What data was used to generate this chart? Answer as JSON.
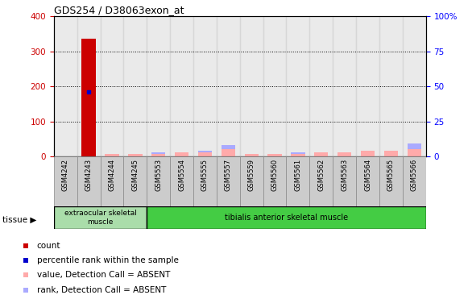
{
  "title": "GDS254 / D38063exon_at",
  "samples": [
    "GSM4242",
    "GSM4243",
    "GSM4244",
    "GSM4245",
    "GSM5553",
    "GSM5554",
    "GSM5555",
    "GSM5557",
    "GSM5559",
    "GSM5560",
    "GSM5561",
    "GSM5562",
    "GSM5563",
    "GSM5564",
    "GSM5565",
    "GSM5566"
  ],
  "count_values": [
    0,
    335,
    0,
    0,
    0,
    0,
    0,
    0,
    0,
    0,
    0,
    0,
    0,
    0,
    0,
    0
  ],
  "percentile_values": [
    0,
    46,
    0,
    0,
    0,
    0,
    0,
    0,
    0,
    0,
    0,
    0,
    0,
    0,
    0,
    0
  ],
  "absent_value_values": [
    0,
    0,
    2,
    2,
    2,
    3,
    3,
    5,
    2,
    2,
    2,
    3,
    3,
    4,
    4,
    5
  ],
  "absent_rank_values": [
    0,
    0,
    2,
    2,
    3,
    3,
    4,
    8,
    2,
    2,
    3,
    3,
    3,
    4,
    4,
    9
  ],
  "ylim_left": [
    0,
    400
  ],
  "yticks_left": [
    0,
    100,
    200,
    300,
    400
  ],
  "yticks_right": [
    0,
    25,
    50,
    75,
    100
  ],
  "ytick_labels_right": [
    "0",
    "25",
    "50",
    "75",
    "100%"
  ],
  "count_color": "#cc0000",
  "percentile_color": "#0000cc",
  "absent_value_color": "#ffaaaa",
  "absent_rank_color": "#aaaaff",
  "tissue_extraocular": "extraocular skeletal\nmuscle",
  "tissue_tibialis": "tibialis anterior skeletal muscle",
  "tissue_label": "tissue",
  "legend_items": [
    {
      "label": "count",
      "color": "#cc0000",
      "marker": "s"
    },
    {
      "label": "percentile rank within the sample",
      "color": "#0000cc",
      "marker": "s"
    },
    {
      "label": "value, Detection Call = ABSENT",
      "color": "#ffaaaa",
      "marker": "s"
    },
    {
      "label": "rank, Detection Call = ABSENT",
      "color": "#aaaaff",
      "marker": "s"
    }
  ],
  "n_extraocular": 4,
  "scale": 4.0
}
